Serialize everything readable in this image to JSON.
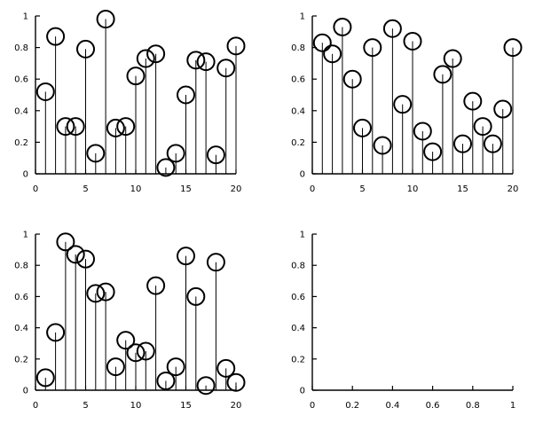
{
  "chart_data": [
    {
      "type": "stem",
      "title": "",
      "xlabel": "",
      "ylabel": "",
      "xlim": [
        0,
        20
      ],
      "ylim": [
        0,
        1
      ],
      "xticks": [
        "0",
        "5",
        "10",
        "15",
        "20"
      ],
      "yticks": [
        "0",
        "0.2",
        "0.4",
        "0.6",
        "0.8",
        "1"
      ],
      "x": [
        1,
        2,
        3,
        4,
        5,
        6,
        7,
        8,
        9,
        10,
        11,
        12,
        13,
        14,
        15,
        16,
        17,
        18,
        19,
        20
      ],
      "values": [
        0.52,
        0.87,
        0.3,
        0.3,
        0.79,
        0.13,
        0.98,
        0.29,
        0.3,
        0.62,
        0.73,
        0.76,
        0.04,
        0.13,
        0.5,
        0.72,
        0.71,
        0.12,
        0.67,
        0.81
      ]
    },
    {
      "type": "stem",
      "title": "",
      "xlabel": "",
      "ylabel": "",
      "xlim": [
        0,
        20
      ],
      "ylim": [
        0,
        1
      ],
      "xticks": [
        "0",
        "5",
        "10",
        "15",
        "20"
      ],
      "yticks": [
        "0",
        "0.2",
        "0.4",
        "0.6",
        "0.8",
        "1"
      ],
      "x": [
        1,
        2,
        3,
        4,
        5,
        6,
        7,
        8,
        9,
        10,
        11,
        12,
        13,
        14,
        15,
        16,
        17,
        18,
        19,
        20
      ],
      "values": [
        0.83,
        0.76,
        0.93,
        0.6,
        0.29,
        0.8,
        0.18,
        0.92,
        0.44,
        0.84,
        0.27,
        0.14,
        0.63,
        0.73,
        0.19,
        0.46,
        0.3,
        0.19,
        0.41,
        0.8
      ]
    },
    {
      "type": "stem",
      "title": "",
      "xlabel": "",
      "ylabel": "",
      "xlim": [
        0,
        20
      ],
      "ylim": [
        0,
        1
      ],
      "xticks": [
        "0",
        "5",
        "10",
        "15",
        "20"
      ],
      "yticks": [
        "0",
        "0.2",
        "0.4",
        "0.6",
        "0.8",
        "1"
      ],
      "x": [
        1,
        2,
        3,
        4,
        5,
        6,
        7,
        8,
        9,
        10,
        11,
        12,
        13,
        14,
        15,
        16,
        17,
        18,
        19,
        20
      ],
      "values": [
        0.08,
        0.37,
        0.95,
        0.87,
        0.84,
        0.62,
        0.63,
        0.15,
        0.32,
        0.24,
        0.25,
        0.67,
        0.06,
        0.15,
        0.86,
        0.6,
        0.03,
        0.82,
        0.14,
        0.05
      ]
    },
    {
      "type": "empty",
      "title": "",
      "xlabel": "",
      "ylabel": "",
      "xlim": [
        0,
        1
      ],
      "ylim": [
        0,
        1
      ],
      "xticks": [
        "0",
        "0.2",
        "0.4",
        "0.6",
        "0.8",
        "1"
      ],
      "yticks": [
        "0",
        "0.2",
        "0.4",
        "0.6",
        "0.8",
        "1"
      ],
      "x": [],
      "values": []
    }
  ]
}
